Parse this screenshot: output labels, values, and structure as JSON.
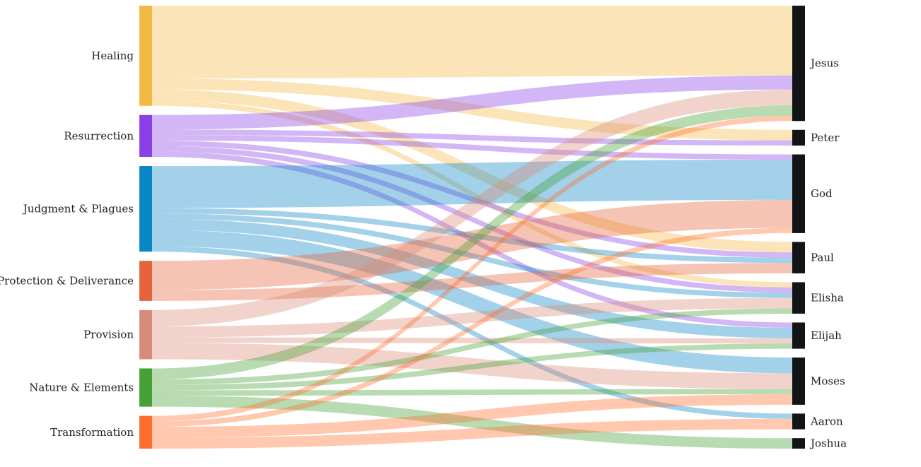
{
  "chart_data": {
    "type": "sankey",
    "sources": [
      {
        "name": "Healing",
        "color": "#f4b942"
      },
      {
        "name": "Resurrection",
        "color": "#8a3fe8"
      },
      {
        "name": "Judgment & Plagues",
        "color": "#0a85c6"
      },
      {
        "name": "Protection & Deliverance",
        "color": "#e4633a"
      },
      {
        "name": "Provision",
        "color": "#d98b7a"
      },
      {
        "name": "Nature & Elements",
        "color": "#45a035"
      },
      {
        "name": "Transformation",
        "color": "#ff6e2e"
      }
    ],
    "targets": [
      {
        "name": "Jesus",
        "color": "#111518"
      },
      {
        "name": "Peter",
        "color": "#111518"
      },
      {
        "name": "God",
        "color": "#111518"
      },
      {
        "name": "Paul",
        "color": "#111518"
      },
      {
        "name": "Elisha",
        "color": "#111518"
      },
      {
        "name": "Elijah",
        "color": "#111518"
      },
      {
        "name": "Moses",
        "color": "#111518"
      },
      {
        "name": "Aaron",
        "color": "#111518"
      },
      {
        "name": "Joshua",
        "color": "#111518"
      }
    ],
    "links": [
      {
        "source": "Healing",
        "target": "Jesus",
        "value": 20
      },
      {
        "source": "Healing",
        "target": "Peter",
        "value": 3
      },
      {
        "source": "Healing",
        "target": "Paul",
        "value": 3
      },
      {
        "source": "Healing",
        "target": "Elisha",
        "value": 1.5
      },
      {
        "source": "Resurrection",
        "target": "Jesus",
        "value": 4
      },
      {
        "source": "Resurrection",
        "target": "Peter",
        "value": 1.5
      },
      {
        "source": "Resurrection",
        "target": "God",
        "value": 1.5
      },
      {
        "source": "Resurrection",
        "target": "Paul",
        "value": 1.5
      },
      {
        "source": "Resurrection",
        "target": "Elisha",
        "value": 1.5
      },
      {
        "source": "Resurrection",
        "target": "Elijah",
        "value": 1.5
      },
      {
        "source": "Judgment & Plagues",
        "target": "God",
        "value": 11.5
      },
      {
        "source": "Judgment & Plagues",
        "target": "Paul",
        "value": 1.5
      },
      {
        "source": "Judgment & Plagues",
        "target": "Elisha",
        "value": 1.5
      },
      {
        "source": "Judgment & Plagues",
        "target": "Elijah",
        "value": 3
      },
      {
        "source": "Judgment & Plagues",
        "target": "Moses",
        "value": 4.5
      },
      {
        "source": "Judgment & Plagues",
        "target": "Aaron",
        "value": 1.5
      },
      {
        "source": "Protection & Deliverance",
        "target": "God",
        "value": 8
      },
      {
        "source": "Protection & Deliverance",
        "target": "Paul",
        "value": 3
      },
      {
        "source": "Provision",
        "target": "Jesus",
        "value": 4.5
      },
      {
        "source": "Provision",
        "target": "Elisha",
        "value": 3
      },
      {
        "source": "Provision",
        "target": "Elijah",
        "value": 1.5
      },
      {
        "source": "Provision",
        "target": "Moses",
        "value": 4.5
      },
      {
        "source": "Nature & Elements",
        "target": "Jesus",
        "value": 3
      },
      {
        "source": "Nature & Elements",
        "target": "Elisha",
        "value": 1.5
      },
      {
        "source": "Nature & Elements",
        "target": "Elijah",
        "value": 1.5
      },
      {
        "source": "Nature & Elements",
        "target": "Moses",
        "value": 1.5
      },
      {
        "source": "Nature & Elements",
        "target": "Joshua",
        "value": 3
      },
      {
        "source": "Transformation",
        "target": "Jesus",
        "value": 1.5
      },
      {
        "source": "Transformation",
        "target": "God",
        "value": 1.5
      },
      {
        "source": "Transformation",
        "target": "Moses",
        "value": 3
      },
      {
        "source": "Transformation",
        "target": "Aaron",
        "value": 3
      }
    ]
  }
}
